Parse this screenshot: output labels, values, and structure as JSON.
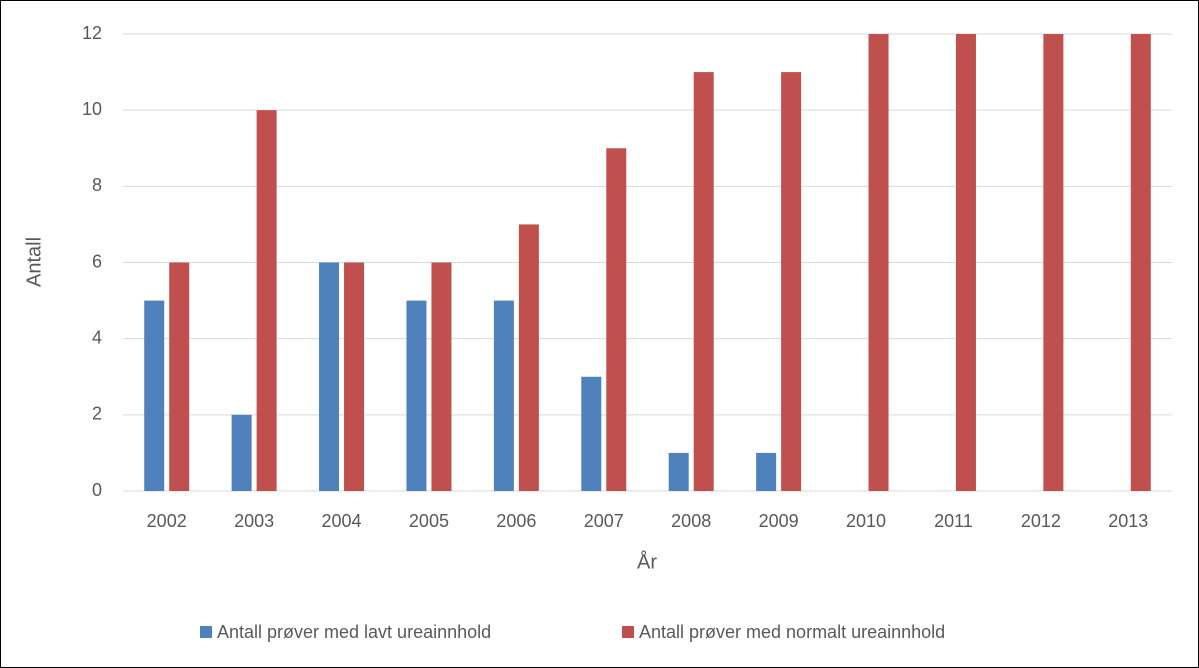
{
  "chart_data": {
    "type": "bar",
    "x_label": "År",
    "y_label": "Antall",
    "categories": [
      "2002",
      "2003",
      "2004",
      "2005",
      "2006",
      "2007",
      "2008",
      "2009",
      "2010",
      "2011",
      "2012",
      "2013"
    ],
    "series": [
      {
        "name": "Antall prøver med lavt ureainnhold",
        "color": "#4f81bd",
        "values": [
          5,
          2,
          6,
          5,
          5,
          3,
          1,
          1,
          0,
          0,
          0,
          0
        ]
      },
      {
        "name": "Antall prøver med normalt ureainnhold",
        "color": "#c0504d",
        "values": [
          6,
          10,
          6,
          6,
          7,
          9,
          11,
          11,
          12,
          12,
          12,
          12
        ]
      }
    ],
    "ylim": [
      0,
      12
    ],
    "yticks": [
      0,
      2,
      4,
      6,
      8,
      10,
      12
    ],
    "grid": true,
    "legend": "bottom"
  }
}
